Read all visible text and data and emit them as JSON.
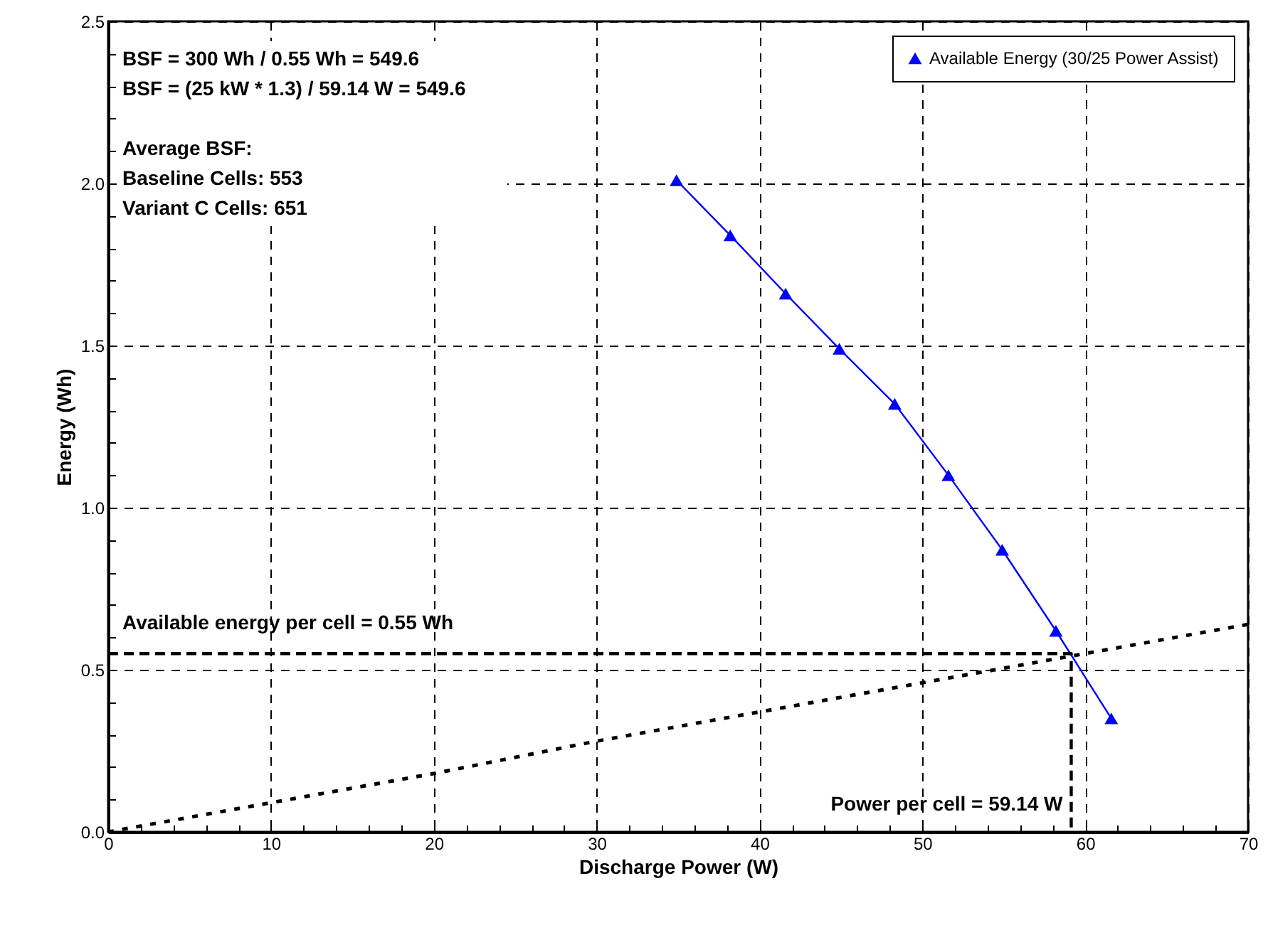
{
  "chart_data": {
    "type": "line",
    "xlabel": "Discharge Power (W)",
    "ylabel": "Energy (Wh)",
    "xlim": [
      0,
      70
    ],
    "ylim": [
      0,
      2.5
    ],
    "xticks": [
      0,
      {
        "value": 2,
        "label": null
      },
      {
        "value": 4,
        "label": null
      },
      {
        "value": 6,
        "label": null
      },
      {
        "value": 8,
        "label": null
      },
      10,
      {
        "value": 12,
        "label": null
      },
      {
        "value": 14,
        "label": null
      },
      {
        "value": 16,
        "label": null
      },
      {
        "value": 18,
        "label": null
      },
      20,
      {
        "value": 22,
        "label": null
      },
      {
        "value": 24,
        "label": null
      },
      {
        "value": 26,
        "label": null
      },
      {
        "value": 28,
        "label": null
      },
      30,
      {
        "value": 32,
        "label": null
      },
      {
        "value": 34,
        "label": null
      },
      {
        "value": 36,
        "label": null
      },
      {
        "value": 38,
        "label": null
      },
      40,
      {
        "value": 42,
        "label": null
      },
      {
        "value": 44,
        "label": null
      },
      {
        "value": 46,
        "label": null
      },
      {
        "value": 48,
        "label": null
      },
      50,
      {
        "value": 52,
        "label": null
      },
      {
        "value": 54,
        "label": null
      },
      {
        "value": 56,
        "label": null
      },
      {
        "value": 58,
        "label": null
      },
      60,
      {
        "value": 62,
        "label": null
      },
      {
        "value": 64,
        "label": null
      },
      {
        "value": 66,
        "label": null
      },
      {
        "value": 68,
        "label": null
      },
      70
    ],
    "yticks": [
      {
        "value": 0,
        "label": "0.0"
      },
      {
        "value": 0.1,
        "label": null
      },
      {
        "value": 0.2,
        "label": null
      },
      {
        "value": 0.3,
        "label": null
      },
      {
        "value": 0.4,
        "label": null
      },
      {
        "value": 0.5,
        "label": "0.5"
      },
      {
        "value": 0.6,
        "label": null
      },
      {
        "value": 0.7,
        "label": null
      },
      {
        "value": 0.8,
        "label": null
      },
      {
        "value": 0.9,
        "label": null
      },
      {
        "value": 1,
        "label": "1.0"
      },
      {
        "value": 1.1,
        "label": null
      },
      {
        "value": 1.2,
        "label": null
      },
      {
        "value": 1.3,
        "label": null
      },
      {
        "value": 1.4,
        "label": null
      },
      {
        "value": 1.5,
        "label": "1.5"
      },
      {
        "value": 1.6,
        "label": null
      },
      {
        "value": 1.7,
        "label": null
      },
      {
        "value": 1.8,
        "label": null
      },
      {
        "value": 1.9,
        "label": null
      },
      {
        "value": 2,
        "label": "2.0"
      },
      {
        "value": 2.1,
        "label": null
      },
      {
        "value": 2.2,
        "label": null
      },
      {
        "value": 2.3,
        "label": null
      },
      {
        "value": 2.4,
        "label": null
      },
      {
        "value": 2.5,
        "label": "2.5"
      }
    ],
    "grid": true,
    "legend": "top right",
    "series": [
      {
        "name": "Available Energy (30/25 Power Assist)",
        "color": "#0000ff",
        "marker": "triangle",
        "line_style": "solid",
        "x": [
          34.9,
          38.2,
          41.6,
          44.9,
          48.3,
          51.6,
          54.9,
          58.2,
          61.6
        ],
        "values": [
          2.01,
          1.84,
          1.66,
          1.49,
          1.32,
          1.1,
          0.87,
          0.62,
          0.35
        ]
      },
      {
        "color": "#000000",
        "line_style": "dotted",
        "marker": "none",
        "x": [
          0,
          10,
          20,
          30,
          40,
          50,
          60,
          70
        ],
        "values": [
          0,
          0.09,
          0.18,
          0.28,
          0.37,
          0.46,
          0.55,
          0.64
        ]
      },
      {
        "color": "#000000",
        "line_style": "dashed",
        "marker": "none",
        "x": [
          0,
          59.14,
          59.14
        ],
        "values": [
          0.55,
          0.55,
          0
        ]
      }
    ],
    "annotations": [
      "BSF = 300 Wh / 0.55 Wh = 549.6",
      "BSF = (25 kW * 1.3) / 59.14 W = 549.6",
      "Average BSF:",
      "Baseline Cells: 553",
      "Variant C Cells: 651",
      {
        "text": "Available energy per cell = 0.55 Wh",
        "x": 0,
        "y": 0.55
      },
      {
        "text": "Power per cell = 59.14 W",
        "x": 59.14,
        "y": 0
      }
    ]
  }
}
